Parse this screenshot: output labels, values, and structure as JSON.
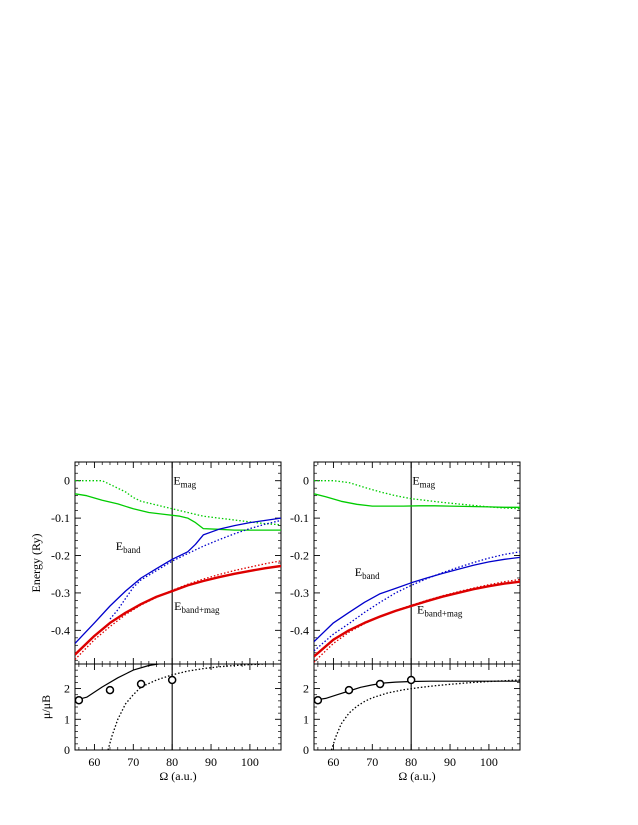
{
  "chart_data": [
    {
      "type": "line",
      "panel": "left",
      "xlabel": "Ω (a.u.)",
      "ylabel": "Energy  (Ry)",
      "y2label": "μ/μB",
      "xlim": [
        55,
        108
      ],
      "ylim": [
        -0.49,
        0.05
      ],
      "y2lim": [
        0,
        2.8
      ],
      "xticks": [
        60,
        70,
        80,
        90,
        100
      ],
      "yticks": [
        0,
        -0.1,
        -0.2,
        -0.3,
        -0.4
      ],
      "y2ticks": [
        0,
        1,
        2
      ],
      "vline": 80,
      "labels": [
        {
          "base": "E",
          "sub": "mag",
          "x": 80.3,
          "y": -0.01
        },
        {
          "base": "E",
          "sub": "band",
          "x": 65.5,
          "y": -0.185
        },
        {
          "base": "E",
          "sub": "band+mag",
          "x": 80.5,
          "y": -0.345
        }
      ],
      "series": [
        {
          "color": "#00cc00",
          "style": "solid",
          "width": 1.3,
          "x": [
            55,
            58,
            62,
            66,
            70,
            74,
            78,
            82,
            84,
            86,
            88,
            92,
            96,
            100,
            104,
            108
          ],
          "y": [
            -0.035,
            -0.04,
            -0.052,
            -0.062,
            -0.075,
            -0.085,
            -0.09,
            -0.095,
            -0.1,
            -0.112,
            -0.128,
            -0.13,
            -0.132,
            -0.132,
            -0.132,
            -0.132
          ]
        },
        {
          "color": "#00cc00",
          "style": "dotted",
          "width": 1.3,
          "x": [
            55,
            58,
            62,
            64,
            66,
            68,
            70,
            72,
            76,
            80,
            84,
            88,
            92,
            96,
            100,
            104,
            108
          ],
          "y": [
            0.0,
            0.0,
            0.0,
            -0.01,
            -0.02,
            -0.03,
            -0.045,
            -0.055,
            -0.065,
            -0.075,
            -0.085,
            -0.095,
            -0.1,
            -0.105,
            -0.11,
            -0.115,
            -0.118
          ]
        },
        {
          "color": "#0000cc",
          "style": "solid",
          "width": 1.3,
          "x": [
            55,
            60,
            64,
            68,
            72,
            76,
            80,
            84,
            86,
            88,
            92,
            96,
            100,
            104,
            108
          ],
          "y": [
            -0.435,
            -0.38,
            -0.335,
            -0.295,
            -0.26,
            -0.235,
            -0.21,
            -0.19,
            -0.17,
            -0.145,
            -0.13,
            -0.12,
            -0.112,
            -0.106,
            -0.1
          ]
        },
        {
          "color": "#0000cc",
          "style": "dotted",
          "width": 1.3,
          "x": [
            64,
            66,
            68,
            70,
            72,
            76,
            80,
            84,
            88,
            92,
            96,
            100,
            104,
            108
          ],
          "y": [
            -0.37,
            -0.345,
            -0.315,
            -0.285,
            -0.265,
            -0.24,
            -0.215,
            -0.195,
            -0.175,
            -0.158,
            -0.142,
            -0.128,
            -0.116,
            -0.106
          ]
        },
        {
          "color": "#dd0000",
          "style": "solid",
          "width": 2.4,
          "x": [
            55,
            60,
            64,
            68,
            72,
            76,
            80,
            84,
            88,
            92,
            96,
            100,
            104,
            108
          ],
          "y": [
            -0.465,
            -0.415,
            -0.38,
            -0.353,
            -0.33,
            -0.31,
            -0.295,
            -0.28,
            -0.268,
            -0.258,
            -0.249,
            -0.241,
            -0.234,
            -0.228
          ]
        },
        {
          "color": "#dd0000",
          "style": "dotted",
          "width": 1.3,
          "x": [
            55,
            60,
            64,
            68,
            72,
            76,
            80,
            84,
            88,
            92,
            96,
            100,
            104,
            108
          ],
          "y": [
            -0.478,
            -0.425,
            -0.39,
            -0.358,
            -0.332,
            -0.312,
            -0.293,
            -0.277,
            -0.263,
            -0.251,
            -0.24,
            -0.231,
            -0.222,
            -0.214
          ]
        }
      ],
      "moment_series": [
        {
          "color": "#000000",
          "style": "solid",
          "width": 1.2,
          "x": [
            55,
            58,
            62,
            66,
            70,
            74,
            78,
            82,
            84,
            85,
            86
          ],
          "y": [
            1.62,
            1.72,
            2.05,
            2.35,
            2.6,
            2.75,
            2.83,
            2.88,
            2.93,
            2.97,
            3.05
          ]
        },
        {
          "color": "#000000",
          "style": "dotted",
          "width": 1.3,
          "x": [
            63.5,
            64.5,
            66,
            68,
            70,
            72,
            76,
            80,
            84,
            88,
            92,
            96,
            100,
            104,
            108
          ],
          "y": [
            0.0,
            0.45,
            1.0,
            1.5,
            1.8,
            2.05,
            2.28,
            2.45,
            2.57,
            2.65,
            2.71,
            2.75,
            2.78,
            2.8,
            2.82
          ]
        }
      ],
      "moment_points": {
        "x": [
          56,
          64,
          72,
          80
        ],
        "y": [
          1.62,
          1.95,
          2.15,
          2.28
        ]
      }
    },
    {
      "type": "line",
      "panel": "right",
      "xlabel": "Ω (a.u.)",
      "ylabel": "",
      "xlim": [
        55,
        108
      ],
      "ylim": [
        -0.49,
        0.05
      ],
      "y2lim": [
        0,
        2.8
      ],
      "xticks": [
        60,
        70,
        80,
        90,
        100
      ],
      "yticks": [
        0,
        -0.1,
        -0.2,
        -0.3,
        -0.4
      ],
      "y2ticks": [
        0,
        1,
        2
      ],
      "vline": 80,
      "labels": [
        {
          "base": "E",
          "sub": "mag",
          "x": 80.3,
          "y": -0.01
        },
        {
          "base": "E",
          "sub": "band",
          "x": 65.5,
          "y": -0.255
        },
        {
          "base": "E",
          "sub": "band+mag",
          "x": 81.5,
          "y": -0.355
        }
      ],
      "series": [
        {
          "color": "#00cc00",
          "style": "solid",
          "width": 1.3,
          "x": [
            55,
            58,
            62,
            66,
            70,
            74,
            78,
            82,
            86,
            90,
            95,
            100,
            104,
            108
          ],
          "y": [
            -0.035,
            -0.043,
            -0.055,
            -0.063,
            -0.068,
            -0.068,
            -0.068,
            -0.067,
            -0.067,
            -0.068,
            -0.069,
            -0.07,
            -0.071,
            -0.071
          ]
        },
        {
          "color": "#00cc00",
          "style": "dotted",
          "width": 1.3,
          "x": [
            55,
            60,
            64,
            68,
            72,
            76,
            80,
            84,
            88,
            92,
            96,
            100,
            104,
            108
          ],
          "y": [
            0.0,
            0.0,
            -0.005,
            -0.018,
            -0.03,
            -0.04,
            -0.048,
            -0.053,
            -0.058,
            -0.062,
            -0.066,
            -0.07,
            -0.073,
            -0.075
          ]
        },
        {
          "color": "#0000cc",
          "style": "solid",
          "width": 1.3,
          "x": [
            55,
            60,
            64,
            68,
            72,
            76,
            80,
            84,
            88,
            92,
            96,
            100,
            104,
            108
          ],
          "y": [
            -0.43,
            -0.38,
            -0.352,
            -0.325,
            -0.302,
            -0.288,
            -0.273,
            -0.26,
            -0.248,
            -0.237,
            -0.226,
            -0.217,
            -0.21,
            -0.205
          ]
        },
        {
          "color": "#0000cc",
          "style": "dotted",
          "width": 1.3,
          "x": [
            55,
            60,
            64,
            68,
            72,
            76,
            80,
            84,
            88,
            92,
            96,
            100,
            104,
            108
          ],
          "y": [
            -0.455,
            -0.41,
            -0.382,
            -0.352,
            -0.325,
            -0.3,
            -0.28,
            -0.262,
            -0.246,
            -0.232,
            -0.219,
            -0.207,
            -0.197,
            -0.19
          ]
        },
        {
          "color": "#dd0000",
          "style": "solid",
          "width": 2.4,
          "x": [
            55,
            60,
            64,
            68,
            72,
            76,
            80,
            84,
            88,
            92,
            96,
            100,
            104,
            108
          ],
          "y": [
            -0.47,
            -0.425,
            -0.4,
            -0.38,
            -0.363,
            -0.348,
            -0.335,
            -0.322,
            -0.31,
            -0.3,
            -0.29,
            -0.282,
            -0.275,
            -0.27
          ]
        },
        {
          "color": "#dd0000",
          "style": "dotted",
          "width": 1.3,
          "x": [
            55,
            60,
            64,
            68,
            72,
            76,
            80,
            84,
            88,
            92,
            96,
            100,
            104,
            108
          ],
          "y": [
            -0.485,
            -0.435,
            -0.405,
            -0.382,
            -0.363,
            -0.347,
            -0.333,
            -0.32,
            -0.308,
            -0.297,
            -0.287,
            -0.278,
            -0.27,
            -0.264
          ]
        }
      ],
      "moment_series": [
        {
          "color": "#000000",
          "style": "solid",
          "width": 1.2,
          "x": [
            55,
            58,
            61,
            64,
            67,
            70,
            73,
            76,
            80,
            85,
            90,
            95,
            100,
            108
          ],
          "y": [
            1.62,
            1.68,
            1.8,
            1.92,
            2.04,
            2.12,
            2.18,
            2.21,
            2.23,
            2.24,
            2.24,
            2.24,
            2.24,
            2.24
          ]
        },
        {
          "color": "#000000",
          "style": "dotted",
          "width": 1.3,
          "x": [
            59.5,
            60.5,
            62,
            64,
            66,
            68,
            70,
            74,
            78,
            82,
            86,
            90,
            95,
            100,
            108
          ],
          "y": [
            0.0,
            0.4,
            0.85,
            1.2,
            1.42,
            1.58,
            1.7,
            1.86,
            1.96,
            2.03,
            2.09,
            2.14,
            2.19,
            2.23,
            2.28
          ]
        }
      ],
      "moment_points": {
        "x": [
          56,
          64,
          72,
          80
        ],
        "y": [
          1.62,
          1.95,
          2.15,
          2.28
        ]
      }
    }
  ]
}
